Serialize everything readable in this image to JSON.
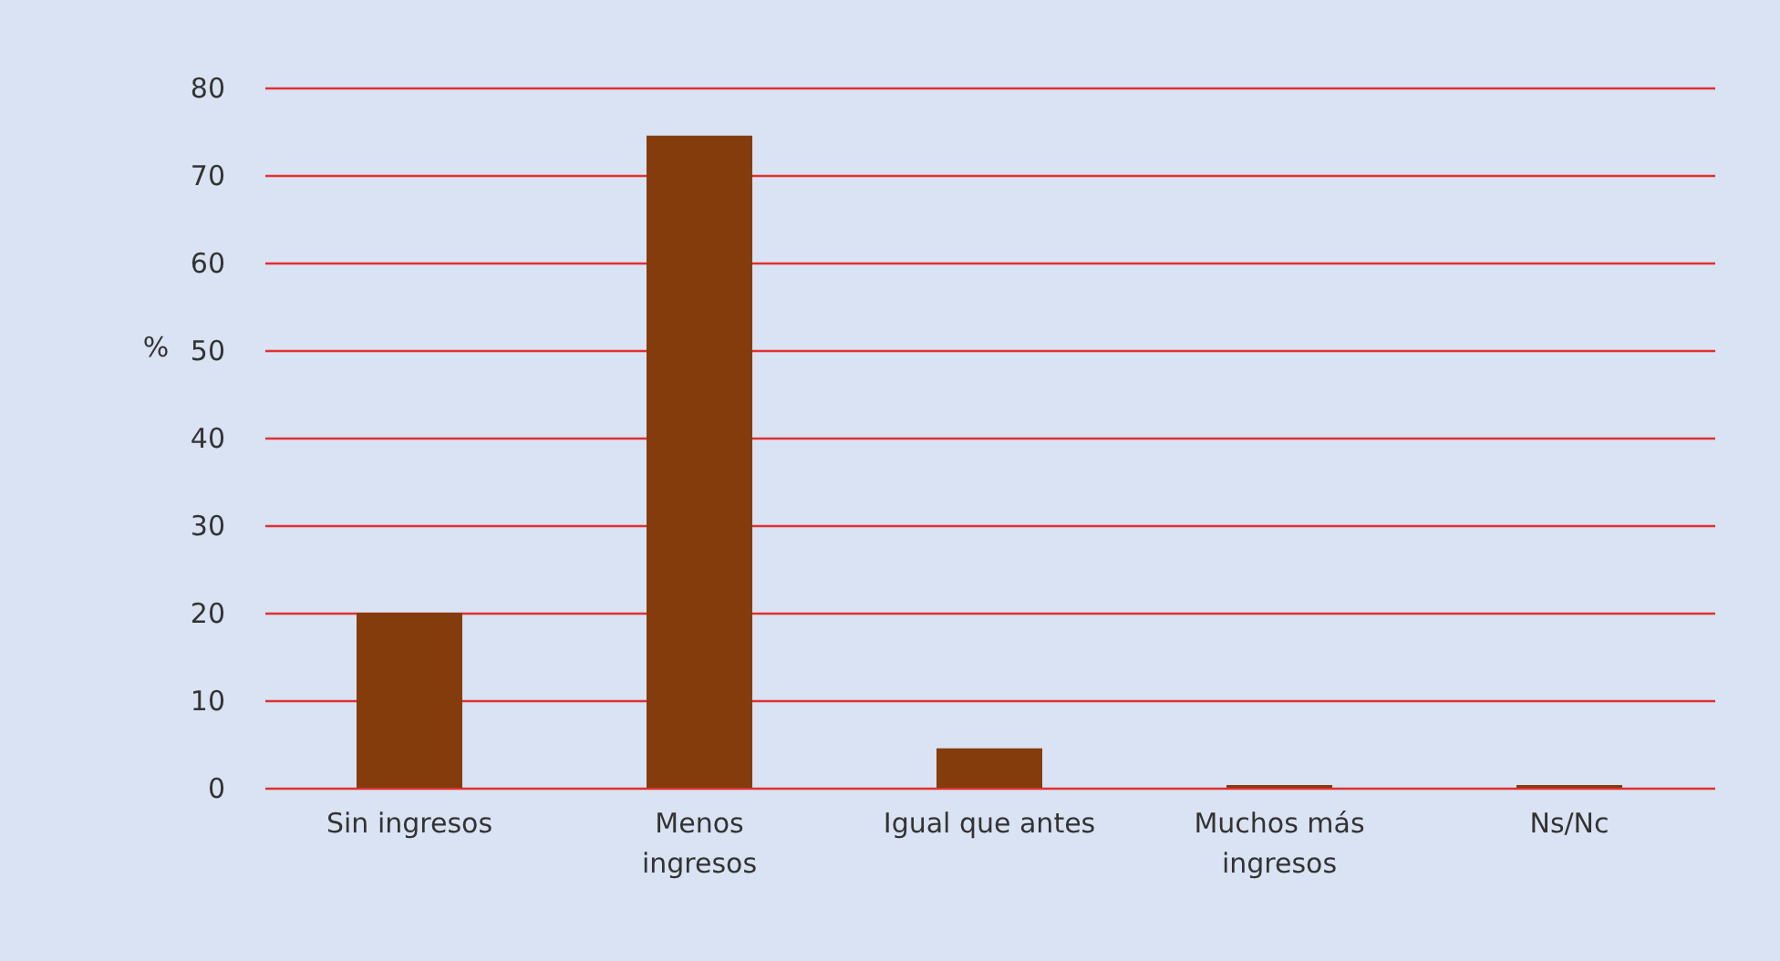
{
  "chart_data": {
    "type": "bar",
    "ylabel": "%",
    "categories": [
      "Sin ingresos",
      "Menos\ningresos",
      "Igual que antes",
      "Muchos más\ningresos",
      "Ns/Nc"
    ],
    "values": [
      20,
      74.5,
      4.5,
      0.3,
      0.3
    ],
    "color": "#843c0c",
    "ylim": [
      0,
      80
    ],
    "yticks": [
      0,
      10,
      20,
      30,
      40,
      50,
      60,
      70,
      80
    ],
    "grid": "y"
  }
}
